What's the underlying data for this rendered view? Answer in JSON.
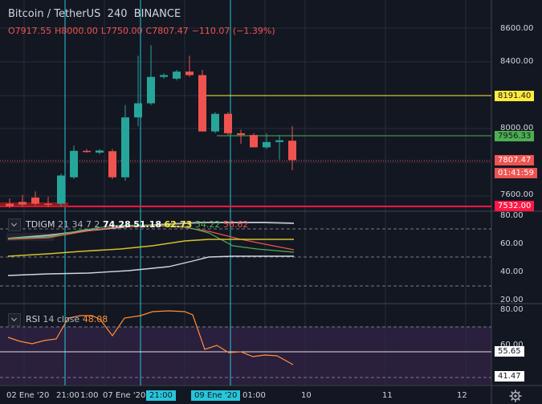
{
  "header": {
    "symbol": "Bitcoin / TetherUS",
    "interval": "240",
    "exchange": "BINANCE",
    "open": "O7917.55",
    "high": "H8000.00",
    "low": "L7750.00",
    "close": "C7807.47",
    "change": "−110.07 (−1.39%)"
  },
  "price_axis": [
    "8600.00",
    "8400.00",
    "8000.00",
    "7600.00"
  ],
  "price_tags": {
    "yellow": "8191.40",
    "green": "7956.33",
    "current": "7807.47",
    "countdown": "01:41:59",
    "red": "7532.00"
  },
  "tdi": {
    "label": "TDIGM",
    "params": "21 34 7 2",
    "v1": "74.28",
    "v2": "51.18",
    "v3": "62.73",
    "v4": "54.22",
    "v5": "56.62",
    "axis": [
      "80.00",
      "60.00",
      "40.00",
      "20.00"
    ]
  },
  "rsi": {
    "label": "RSI",
    "params": "14 close",
    "value": "48.08",
    "axis": [
      "80.00",
      "60.00"
    ],
    "tag_white": "55.65",
    "tag_gray": "41.47"
  },
  "time_axis": {
    "t1": "02 Ene '20",
    "t2": "21:00",
    "t3": "1:00",
    "t4": "07 Ene '20",
    "t5": "21:00",
    "t6": "09 Ene '20",
    "t7": "01:00",
    "t8": "10",
    "t9": "11",
    "t10": "12"
  },
  "chart_data": {
    "type": "candlestick",
    "title": "Bitcoin / TetherUS 240 BINANCE",
    "y_price_range": [
      7540,
      8680
    ],
    "candles": [
      {
        "o": 7560,
        "h": 7590,
        "l": 7535,
        "c": 7545
      },
      {
        "o": 7570,
        "h": 7610,
        "l": 7540,
        "c": 7555
      },
      {
        "o": 7595,
        "h": 7630,
        "l": 7550,
        "c": 7560
      },
      {
        "o": 7560,
        "h": 7600,
        "l": 7540,
        "c": 7555
      },
      {
        "o": 7560,
        "h": 7730,
        "l": 7545,
        "c": 7720
      },
      {
        "o": 7710,
        "h": 7890,
        "l": 7700,
        "c": 7860
      },
      {
        "o": 7860,
        "h": 7870,
        "l": 7850,
        "c": 7855
      },
      {
        "o": 7850,
        "h": 7870,
        "l": 7840,
        "c": 7862
      },
      {
        "o": 7858,
        "h": 7870,
        "l": 7700,
        "c": 7710
      },
      {
        "o": 7710,
        "h": 8120,
        "l": 7690,
        "c": 8050
      },
      {
        "o": 8050,
        "h": 8400,
        "l": 8000,
        "c": 8130
      },
      {
        "o": 8130,
        "h": 8460,
        "l": 8120,
        "c": 8280
      },
      {
        "o": 8280,
        "h": 8300,
        "l": 8270,
        "c": 8290
      },
      {
        "o": 8270,
        "h": 8320,
        "l": 8260,
        "c": 8310
      },
      {
        "o": 8310,
        "h": 8400,
        "l": 8280,
        "c": 8290
      },
      {
        "o": 8290,
        "h": 8320,
        "l": 7970,
        "c": 7970
      },
      {
        "o": 7970,
        "h": 8080,
        "l": 7960,
        "c": 8070
      },
      {
        "o": 8070,
        "h": 8080,
        "l": 7950,
        "c": 7960
      },
      {
        "o": 7960,
        "h": 7980,
        "l": 7900,
        "c": 7950
      },
      {
        "o": 7950,
        "h": 7960,
        "l": 7880,
        "c": 7880
      },
      {
        "o": 7880,
        "h": 7960,
        "l": 7870,
        "c": 7910
      },
      {
        "o": 7910,
        "h": 7950,
        "l": 7810,
        "c": 7920
      },
      {
        "o": 7917.55,
        "h": 8000,
        "l": 7750,
        "c": 7807.47
      }
    ],
    "horizontal_levels": [
      8191.4,
      7956.33,
      7807.47,
      7532.0
    ]
  }
}
